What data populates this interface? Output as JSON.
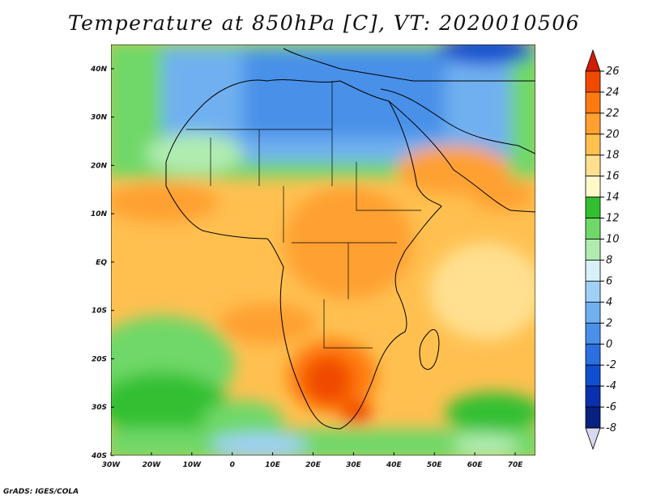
{
  "title": "Temperature at 850hPa [C], VT: 2020010506",
  "credit": "GrADS: IGES/COLA",
  "map": {
    "lat_labels": [
      "40N",
      "30N",
      "20N",
      "10N",
      "EQ",
      "10S",
      "20S",
      "30S",
      "40S"
    ],
    "lon_labels": [
      "30W",
      "20W",
      "10W",
      "0",
      "10E",
      "20E",
      "30E",
      "40E",
      "50E",
      "60E",
      "70E"
    ],
    "lat_range": [
      -40,
      45
    ],
    "lon_range": [
      -30,
      75
    ]
  },
  "colorbar": {
    "levels": [
      "26",
      "24",
      "22",
      "20",
      "18",
      "16",
      "14",
      "12",
      "10",
      "8",
      "6",
      "4",
      "2",
      "0",
      "-2",
      "-4",
      "-6",
      "-8"
    ],
    "colors": [
      "#d01e00",
      "#f04a00",
      "#ff7a10",
      "#ffa030",
      "#ffc050",
      "#ffe090",
      "#fff8c8",
      "#30c030",
      "#6fd868",
      "#b0ecb0",
      "#d8f0f8",
      "#a0d0f8",
      "#70b0f0",
      "#4a90e8",
      "#2a70e0",
      "#1050d0",
      "#0a30b0",
      "#082080",
      "#d8d8f0"
    ]
  }
}
